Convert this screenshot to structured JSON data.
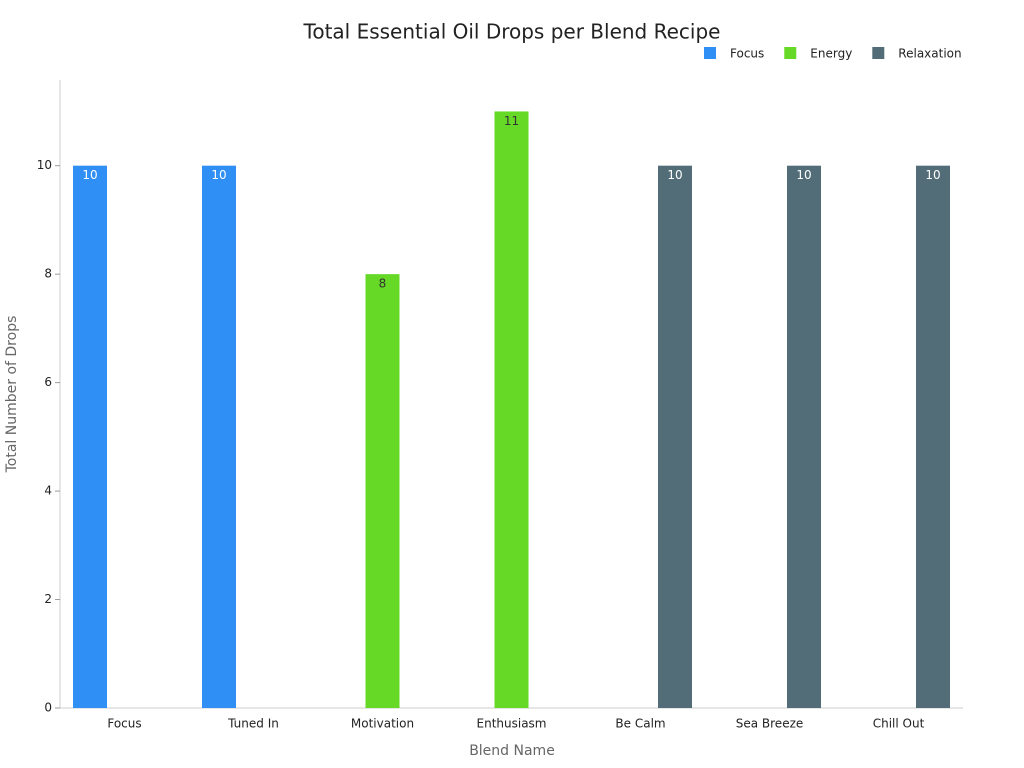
{
  "chart_data": {
    "type": "bar",
    "title": "Total Essential Oil Drops per Blend Recipe",
    "x_label": "Blend Name",
    "y_label": "Total Number of Drops",
    "categories": [
      "Focus",
      "Tuned In",
      "Motivation",
      "Enthusiasm",
      "Be Calm",
      "Sea Breeze",
      "Chill Out"
    ],
    "series": [
      {
        "name": "Focus",
        "color": "#2f8ff5",
        "values": [
          10,
          10,
          null,
          null,
          null,
          null,
          null
        ]
      },
      {
        "name": "Energy",
        "color": "#66d926",
        "values": [
          null,
          null,
          8,
          11,
          null,
          null,
          null
        ]
      },
      {
        "name": "Relaxation",
        "color": "#526d78",
        "values": [
          null,
          null,
          null,
          null,
          10,
          10,
          10
        ]
      }
    ],
    "ylim": [
      0,
      11.58
    ],
    "yticks": [
      0,
      2,
      4,
      6,
      8,
      10
    ],
    "grid": false,
    "legend": "top-right"
  }
}
